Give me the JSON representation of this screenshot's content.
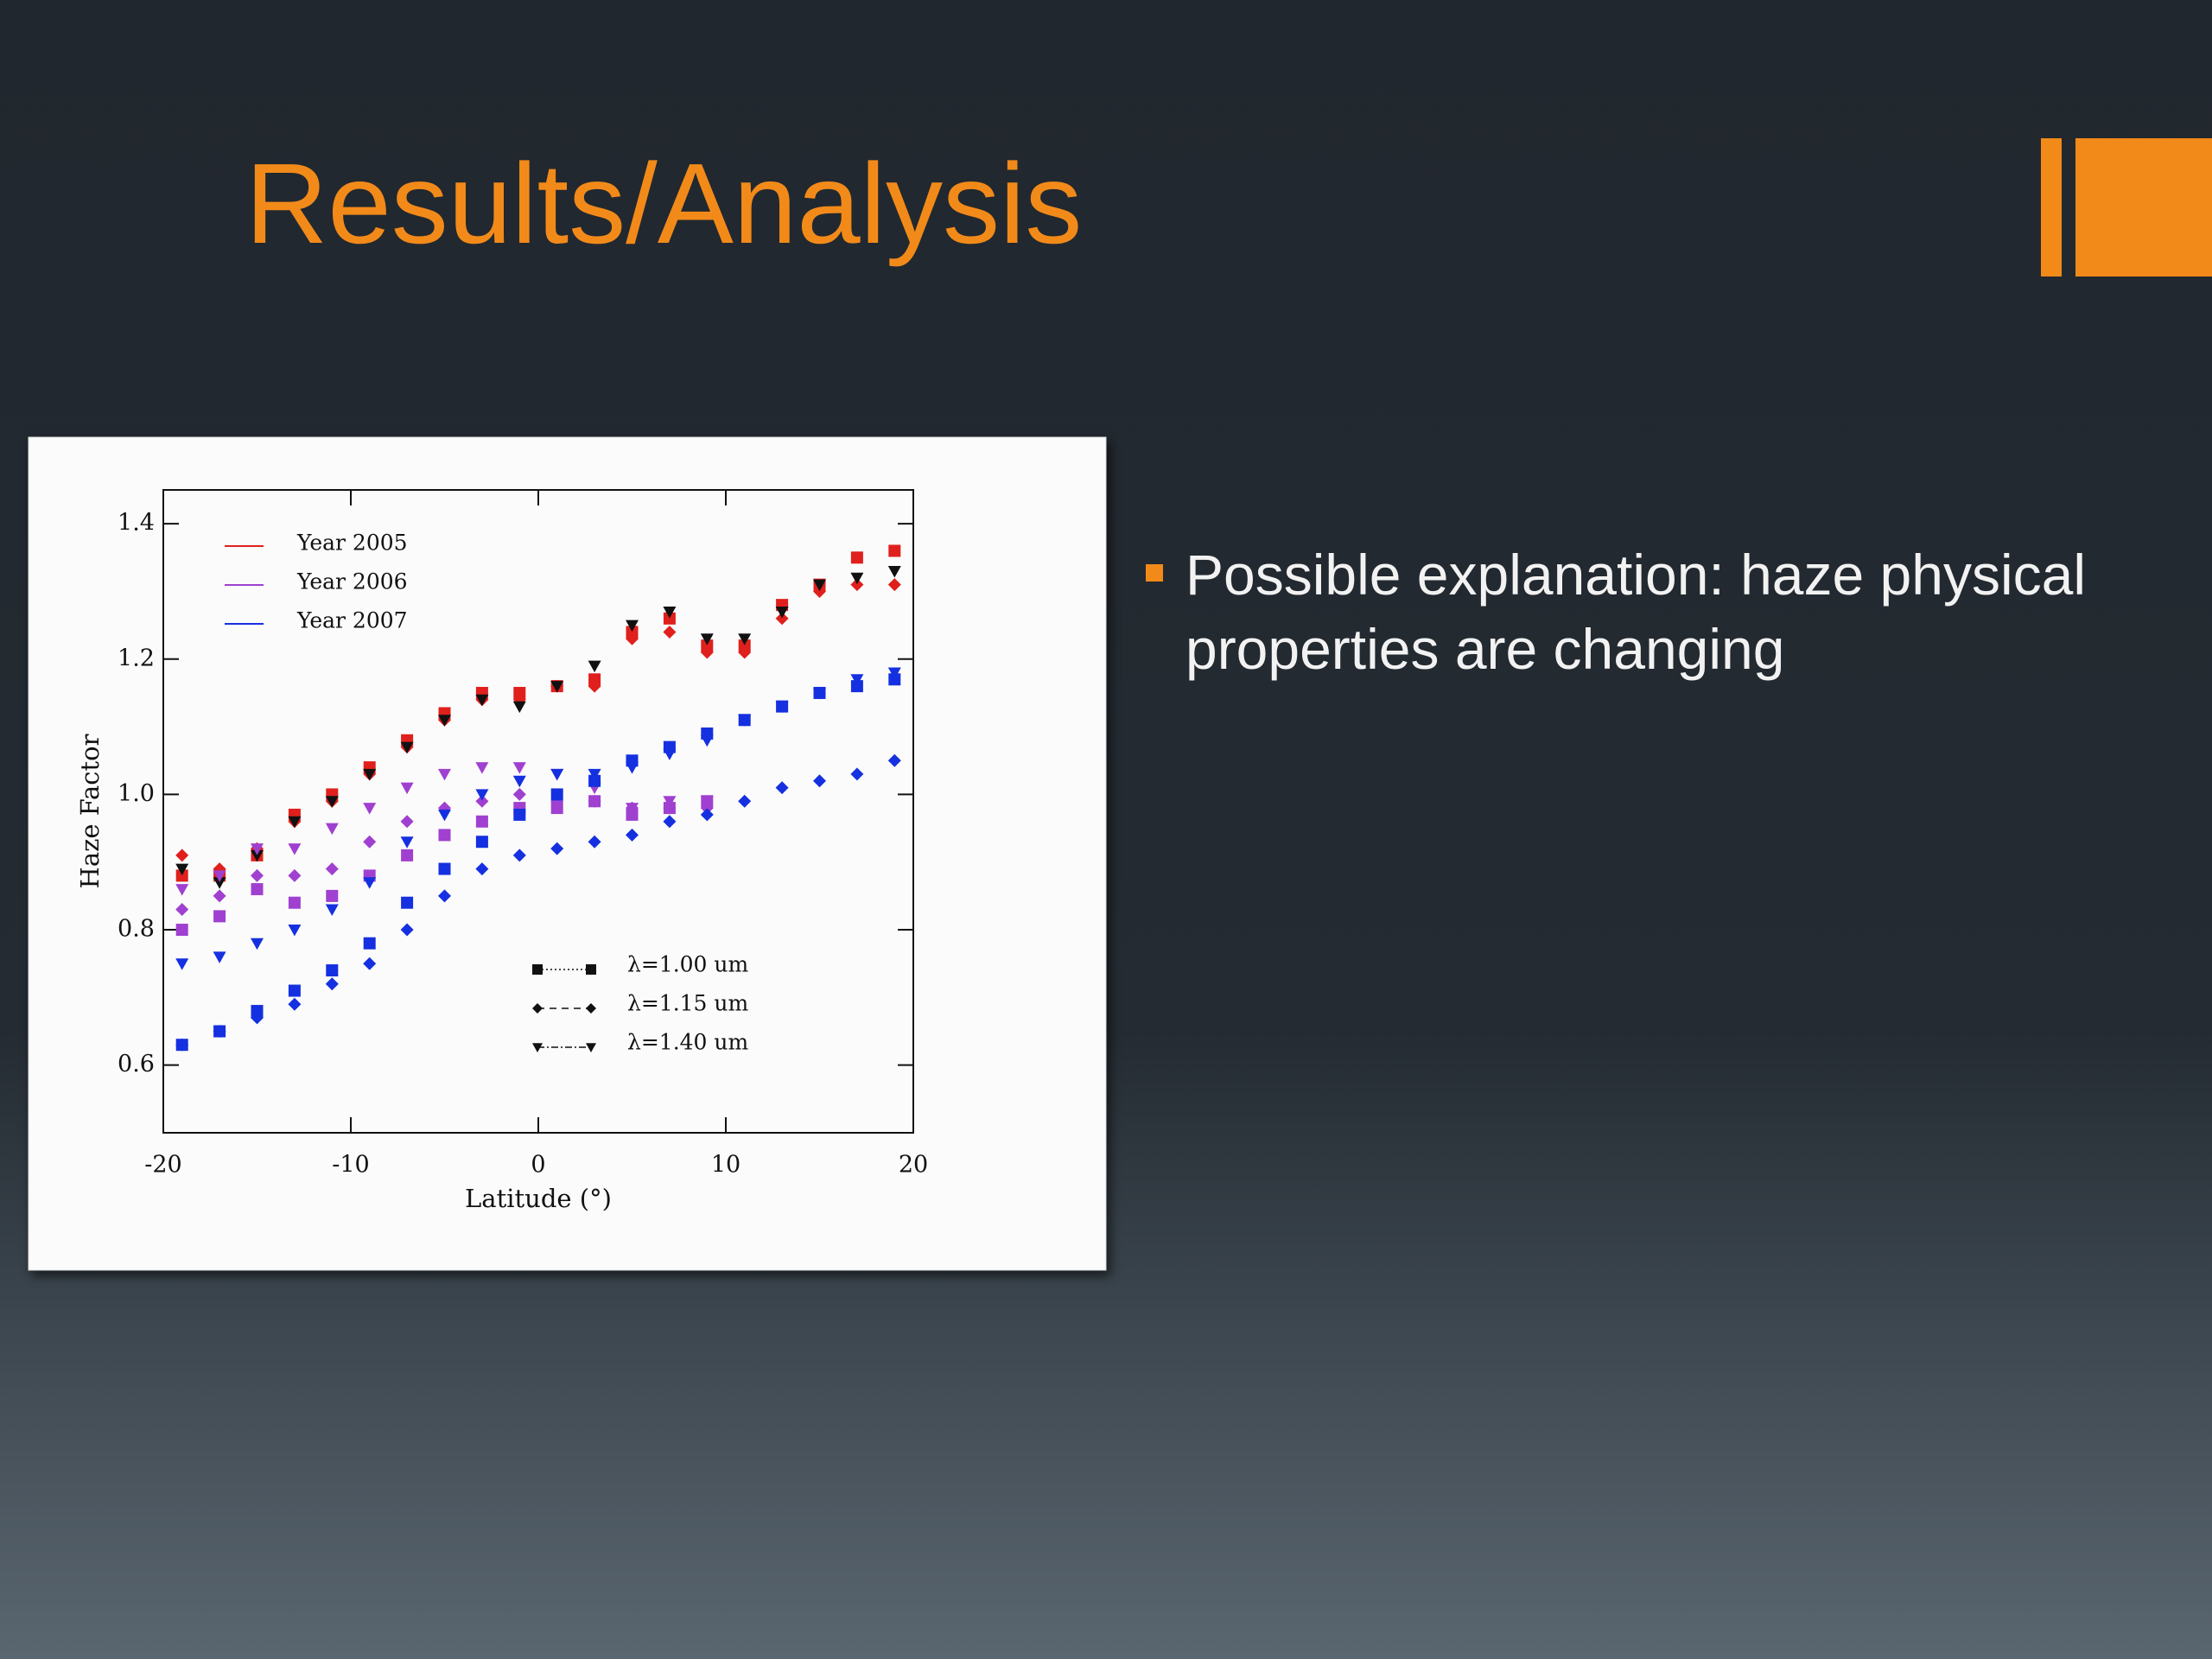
{
  "slide": {
    "title": "Results/Analysis",
    "bullets": [
      "Possible explanation: haze physical properties are changing"
    ]
  },
  "chart_data": {
    "type": "scatter",
    "x_label": "Latitude (°)",
    "y_label": "Haze Factor",
    "xlim": [
      -20,
      20
    ],
    "xticks": [
      -20,
      -10,
      0,
      10,
      20
    ],
    "ylim": [
      0.5,
      1.45
    ],
    "yticks": [
      0.6,
      0.8,
      {
        "value": 1,
        "label": "1.0"
      },
      1.2,
      1.4
    ],
    "x": [
      -19,
      -17,
      -15,
      -13,
      -11,
      -9,
      -7,
      -5,
      -3,
      -1,
      1,
      3,
      5,
      7,
      9,
      11,
      13,
      15,
      17,
      19
    ],
    "legend": {
      "years": [
        {
          "label": "Year 2005",
          "color": "#e0201c"
        },
        {
          "label": "Year 2006",
          "color": "#a040d0"
        },
        {
          "label": "Year 2007",
          "color": "#1530e0"
        }
      ],
      "wavelengths": [
        {
          "label": "λ=1.00 um",
          "marker": "square",
          "dash": "2,3"
        },
        {
          "label": "λ=1.15 um",
          "marker": "diamond",
          "dash": "8,6"
        },
        {
          "label": "λ=1.40 um",
          "marker": "triangle",
          "dash": "8,3,2,3"
        }
      ]
    },
    "series": [
      {
        "color": "#e0201c",
        "marker": "square",
        "values": [
          0.88,
          0.88,
          0.91,
          0.97,
          1.0,
          1.04,
          1.08,
          1.12,
          1.15,
          1.15,
          1.16,
          1.17,
          1.24,
          1.26,
          1.22,
          1.22,
          1.28,
          1.31,
          1.35,
          1.36
        ]
      },
      {
        "color": "#e0201c",
        "marker": "diamond",
        "values": [
          0.91,
          0.89,
          0.92,
          0.96,
          0.99,
          1.03,
          1.07,
          1.11,
          1.14,
          1.14,
          1.16,
          1.16,
          1.23,
          1.24,
          1.21,
          1.21,
          1.26,
          1.3,
          1.31,
          1.31
        ]
      },
      {
        "color": "#111111",
        "marker": "triangle",
        "values": [
          0.89,
          0.87,
          0.91,
          0.96,
          0.99,
          1.03,
          1.07,
          1.11,
          1.14,
          1.13,
          1.16,
          1.19,
          1.25,
          1.27,
          1.23,
          1.23,
          1.27,
          1.31,
          1.32,
          1.33
        ]
      },
      {
        "color": "#a040d0",
        "marker": "square",
        "values": [
          0.8,
          0.82,
          0.86,
          0.84,
          0.85,
          0.88,
          0.91,
          0.94,
          0.96,
          0.98,
          0.98,
          0.99,
          0.97,
          0.98,
          0.99,
          null,
          null,
          null,
          null,
          null
        ]
      },
      {
        "color": "#a040d0",
        "marker": "diamond",
        "values": [
          0.83,
          0.85,
          0.88,
          0.88,
          0.89,
          0.93,
          0.96,
          0.98,
          0.99,
          1.0,
          0.99,
          0.99,
          0.98,
          0.98,
          0.98,
          null,
          null,
          null,
          null,
          null
        ]
      },
      {
        "color": "#a040d0",
        "marker": "triangle",
        "values": [
          0.86,
          0.88,
          0.92,
          0.92,
          0.95,
          0.98,
          1.01,
          1.03,
          1.04,
          1.04,
          1.03,
          1.01,
          0.98,
          0.99,
          0.99,
          null,
          null,
          null,
          null,
          null
        ]
      },
      {
        "color": "#1530e0",
        "marker": "square",
        "values": [
          0.63,
          0.65,
          0.68,
          0.71,
          0.74,
          0.78,
          0.84,
          0.89,
          0.93,
          0.97,
          1.0,
          1.02,
          1.05,
          1.07,
          1.09,
          1.11,
          1.13,
          1.15,
          1.16,
          1.17
        ]
      },
      {
        "color": "#1530e0",
        "marker": "diamond",
        "values": [
          0.63,
          0.65,
          0.67,
          0.69,
          0.72,
          0.75,
          0.8,
          0.85,
          0.89,
          0.91,
          0.92,
          0.93,
          0.94,
          0.96,
          0.97,
          0.99,
          1.01,
          1.02,
          1.03,
          1.05
        ]
      },
      {
        "color": "#1530e0",
        "marker": "triangle",
        "values": [
          0.75,
          0.76,
          0.78,
          0.8,
          0.83,
          0.87,
          0.93,
          0.97,
          1.0,
          1.02,
          1.03,
          1.03,
          1.04,
          1.06,
          1.08,
          1.11,
          1.13,
          1.15,
          1.17,
          1.18
        ]
      }
    ]
  }
}
